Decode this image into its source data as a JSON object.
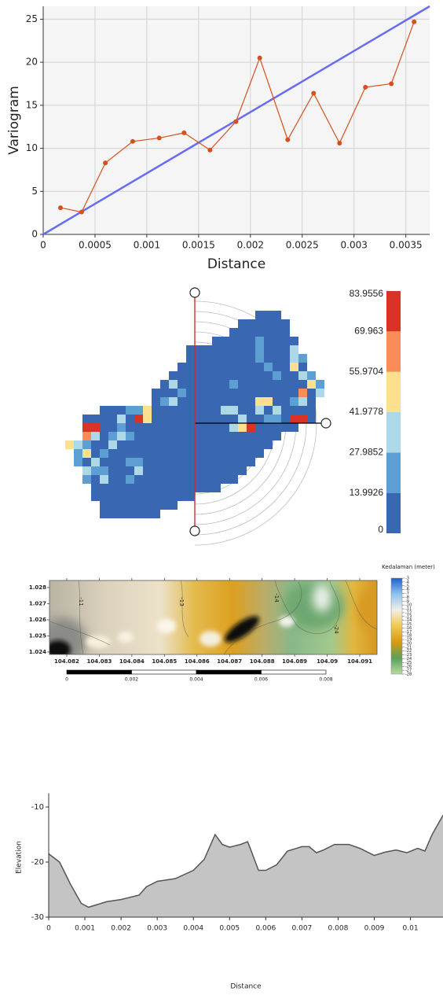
{
  "chart_data": [
    {
      "type": "line",
      "x_label": "Distance",
      "y_label": "Variogram",
      "xlim": [
        0,
        0.00373
      ],
      "ylim": [
        0,
        26.5
      ],
      "xticks": [
        0,
        0.0005,
        0.001,
        0.0015,
        0.002,
        0.0025,
        0.003,
        0.0035
      ],
      "yticks": [
        0,
        5,
        10,
        15,
        20,
        25
      ],
      "grid": true,
      "series": [
        {
          "color": "#d6501e",
          "markers": true,
          "x": [
            0.000167,
            0.000371,
            0.0006,
            0.000864,
            0.00112,
            0.00136,
            0.00161,
            0.00186,
            0.00209,
            0.00236,
            0.00261,
            0.00286,
            0.00311,
            0.00336,
            0.00358
          ],
          "values": [
            3.1,
            2.6,
            8.3,
            10.8,
            11.2,
            11.8,
            9.8,
            13.1,
            20.5,
            11.0,
            16.4,
            10.6,
            17.1,
            17.5,
            24.7
          ]
        },
        {
          "color": "#6a6cf0",
          "markers": false,
          "x": [
            0,
            0.00373
          ],
          "values": [
            0,
            26.5
          ]
        }
      ]
    },
    {
      "type": "heatmap",
      "matrix": [
        [
          null,
          null,
          null,
          null,
          null,
          null,
          null,
          null,
          null,
          null,
          null,
          null,
          null,
          null,
          null,
          null,
          null,
          null,
          null,
          null,
          null,
          null,
          5,
          5,
          5,
          null,
          null,
          null,
          null,
          null,
          null
        ],
        [
          null,
          null,
          null,
          null,
          null,
          null,
          null,
          null,
          null,
          null,
          null,
          null,
          null,
          null,
          null,
          null,
          null,
          null,
          null,
          null,
          5,
          5,
          5,
          5,
          5,
          5,
          null,
          null,
          null,
          null,
          null
        ],
        [
          null,
          null,
          null,
          null,
          null,
          null,
          null,
          null,
          null,
          null,
          null,
          null,
          null,
          null,
          null,
          null,
          null,
          null,
          null,
          5,
          5,
          5,
          5,
          5,
          5,
          5,
          null,
          null,
          null,
          null,
          null
        ],
        [
          null,
          null,
          null,
          null,
          null,
          null,
          null,
          null,
          null,
          null,
          null,
          null,
          null,
          null,
          null,
          null,
          null,
          5,
          5,
          5,
          5,
          5,
          20,
          5,
          5,
          5,
          5,
          null,
          null,
          null,
          null
        ],
        [
          null,
          null,
          null,
          null,
          null,
          null,
          null,
          null,
          null,
          null,
          null,
          null,
          null,
          null,
          5,
          5,
          5,
          5,
          5,
          5,
          5,
          5,
          20,
          5,
          5,
          5,
          35,
          null,
          null,
          null,
          null
        ],
        [
          null,
          null,
          null,
          null,
          null,
          null,
          null,
          null,
          null,
          null,
          null,
          null,
          null,
          null,
          5,
          5,
          5,
          5,
          5,
          5,
          5,
          5,
          20,
          5,
          5,
          5,
          35,
          20,
          null,
          null,
          null
        ],
        [
          null,
          null,
          null,
          null,
          null,
          null,
          null,
          null,
          null,
          null,
          null,
          null,
          null,
          5,
          5,
          5,
          5,
          5,
          5,
          5,
          5,
          5,
          5,
          20,
          5,
          5,
          50,
          5,
          null,
          null,
          null
        ],
        [
          null,
          null,
          null,
          null,
          null,
          null,
          null,
          null,
          null,
          null,
          null,
          null,
          5,
          5,
          5,
          5,
          5,
          5,
          5,
          5,
          5,
          5,
          5,
          5,
          20,
          5,
          5,
          35,
          20,
          null,
          null
        ],
        [
          null,
          null,
          null,
          null,
          null,
          null,
          null,
          null,
          null,
          null,
          null,
          5,
          35,
          5,
          5,
          5,
          5,
          5,
          5,
          20,
          5,
          5,
          5,
          5,
          5,
          5,
          5,
          5,
          50,
          20,
          null
        ],
        [
          null,
          null,
          null,
          null,
          null,
          null,
          null,
          null,
          null,
          null,
          5,
          5,
          5,
          20,
          5,
          5,
          5,
          5,
          5,
          5,
          5,
          5,
          5,
          5,
          5,
          5,
          5,
          62,
          5,
          35,
          null
        ],
        [
          null,
          null,
          null,
          null,
          null,
          null,
          null,
          null,
          null,
          null,
          5,
          20,
          35,
          5,
          5,
          5,
          5,
          5,
          5,
          5,
          5,
          5,
          50,
          50,
          5,
          5,
          20,
          35,
          5,
          null,
          null
        ],
        [
          null,
          null,
          null,
          null,
          5,
          5,
          5,
          20,
          20,
          50,
          5,
          5,
          5,
          5,
          5,
          5,
          5,
          5,
          35,
          35,
          5,
          5,
          35,
          5,
          35,
          5,
          5,
          5,
          5,
          null,
          null
        ],
        [
          null,
          null,
          5,
          5,
          5,
          5,
          35,
          5,
          77,
          50,
          5,
          5,
          5,
          5,
          5,
          5,
          5,
          5,
          5,
          5,
          35,
          5,
          5,
          20,
          20,
          5,
          77,
          77,
          5,
          null,
          null
        ],
        [
          null,
          null,
          77,
          77,
          5,
          5,
          20,
          5,
          5,
          5,
          5,
          5,
          5,
          5,
          5,
          5,
          5,
          5,
          5,
          35,
          50,
          77,
          5,
          5,
          5,
          5,
          5,
          null,
          null,
          null,
          null
        ],
        [
          null,
          null,
          62,
          35,
          5,
          20,
          35,
          20,
          5,
          5,
          5,
          5,
          5,
          5,
          5,
          5,
          5,
          5,
          5,
          5,
          5,
          5,
          5,
          5,
          5,
          null,
          null,
          null,
          null,
          null,
          null
        ],
        [
          50,
          35,
          20,
          5,
          5,
          35,
          5,
          5,
          5,
          5,
          5,
          5,
          5,
          5,
          5,
          5,
          5,
          5,
          5,
          5,
          5,
          5,
          5,
          5,
          null,
          null,
          null,
          null,
          null,
          null,
          null
        ],
        [
          null,
          20,
          50,
          5,
          20,
          5,
          5,
          5,
          5,
          5,
          5,
          5,
          5,
          5,
          5,
          5,
          5,
          5,
          5,
          5,
          5,
          5,
          5,
          null,
          null,
          null,
          null,
          null,
          null,
          null,
          null
        ],
        [
          null,
          20,
          5,
          35,
          5,
          5,
          5,
          20,
          20,
          5,
          5,
          5,
          5,
          5,
          5,
          5,
          5,
          5,
          5,
          5,
          5,
          5,
          null,
          null,
          null,
          null,
          null,
          null,
          null,
          null,
          null
        ],
        [
          null,
          null,
          35,
          20,
          20,
          5,
          5,
          5,
          35,
          5,
          5,
          5,
          5,
          5,
          5,
          5,
          5,
          5,
          5,
          5,
          5,
          null,
          null,
          null,
          null,
          null,
          null,
          null,
          null,
          null,
          null
        ],
        [
          null,
          null,
          20,
          5,
          35,
          5,
          5,
          20,
          5,
          5,
          5,
          5,
          5,
          5,
          5,
          5,
          5,
          5,
          5,
          5,
          null,
          null,
          null,
          null,
          null,
          null,
          null,
          null,
          null,
          null,
          null
        ],
        [
          null,
          null,
          null,
          5,
          5,
          5,
          5,
          5,
          5,
          5,
          5,
          5,
          5,
          5,
          5,
          5,
          5,
          5,
          null,
          null,
          null,
          null,
          null,
          null,
          null,
          null,
          null,
          null,
          null,
          null,
          null
        ],
        [
          null,
          null,
          null,
          5,
          5,
          5,
          5,
          5,
          5,
          5,
          5,
          5,
          5,
          5,
          5,
          null,
          null,
          null,
          null,
          null,
          null,
          null,
          null,
          null,
          null,
          null,
          null,
          null,
          null,
          null,
          null
        ],
        [
          null,
          null,
          null,
          null,
          5,
          5,
          5,
          5,
          5,
          5,
          5,
          5,
          5,
          null,
          null,
          null,
          null,
          null,
          null,
          null,
          null,
          null,
          null,
          null,
          null,
          null,
          null,
          null,
          null,
          null,
          null
        ],
        [
          null,
          null,
          null,
          null,
          5,
          5,
          5,
          5,
          5,
          5,
          5,
          null,
          null,
          null,
          null,
          null,
          null,
          null,
          null,
          null,
          null,
          null,
          null,
          null,
          null,
          null,
          null,
          null,
          null,
          null,
          null
        ]
      ],
      "colorbar": {
        "ticks": [
          0,
          13.9926,
          27.9852,
          41.9778,
          55.9704,
          69.963,
          83.9556
        ],
        "colors": [
          "#3a67b1",
          "#5e9fd3",
          "#add8e8",
          "#fde08e",
          "#f98c58",
          "#d93227"
        ]
      }
    },
    {
      "type": "contour-map",
      "xlim": [
        104.08147,
        104.09153
      ],
      "ylim": [
        1.02385,
        1.02844
      ],
      "xticks": [
        104.082,
        104.083,
        104.084,
        104.085,
        104.086,
        104.087,
        104.088,
        104.089,
        104.09,
        104.091
      ],
      "yticks": [
        1.024,
        1.025,
        1.026,
        1.027,
        1.028
      ],
      "contour_labels": [
        "-11",
        "-13",
        "-14",
        "-24"
      ],
      "colorbar": {
        "title": "Kedalaman (meter)",
        "ticks": [
          -3,
          -4,
          -5,
          -6,
          -7,
          -8,
          -9,
          -10,
          -11,
          -12,
          -13,
          -14,
          -15,
          -16,
          -17,
          -18,
          -19,
          -20,
          -21,
          -22,
          -23,
          -24,
          -25,
          -26,
          -27,
          -28
        ],
        "colors": [
          "#1f5fd0",
          "#8ec4ef",
          "#f2eee6",
          "#f0c850",
          "#d89a10",
          "#5aa05a",
          "#b8dca0"
        ]
      },
      "scalebar_ticks": [
        0,
        0.002,
        0.004,
        0.006,
        0.008
      ]
    },
    {
      "type": "area",
      "x_label": "Distance",
      "y_label": "Elevation",
      "xlim": [
        0,
        0.0109
      ],
      "ylim": [
        -30,
        -7.5
      ],
      "xticks": [
        0,
        0.001,
        0.002,
        0.003,
        0.004,
        0.005,
        0.006,
        0.007,
        0.008,
        0.009,
        0.01
      ],
      "yticks": [
        -30,
        -20,
        -10
      ],
      "color": "#c4c4c4",
      "line_color": "#555555",
      "x": [
        0,
        0.0003,
        0.0006,
        0.0009,
        0.0011,
        0.0013,
        0.0016,
        0.002,
        0.0025,
        0.0027,
        0.003,
        0.0035,
        0.004,
        0.0043,
        0.0046,
        0.0048,
        0.005,
        0.0053,
        0.0055,
        0.0056,
        0.0058,
        0.006,
        0.0063,
        0.0066,
        0.007,
        0.0072,
        0.0074,
        0.0076,
        0.0079,
        0.0083,
        0.0086,
        0.009,
        0.0093,
        0.0096,
        0.0099,
        0.0102,
        0.0104,
        0.0106,
        0.0109
      ],
      "values": [
        -18.5,
        -20,
        -24,
        -27.5,
        -28.2,
        -27.8,
        -27.2,
        -26.8,
        -26,
        -24.5,
        -23.5,
        -23,
        -21.5,
        -19.5,
        -15,
        -16.8,
        -17.3,
        -16.8,
        -16.3,
        -18,
        -21.5,
        -21.5,
        -20.5,
        -18,
        -17.2,
        -17.2,
        -18.3,
        -17.8,
        -16.8,
        -16.8,
        -17.5,
        -18.8,
        -18.2,
        -17.8,
        -18.3,
        -17.5,
        -18,
        -15,
        -11.5
      ]
    }
  ]
}
